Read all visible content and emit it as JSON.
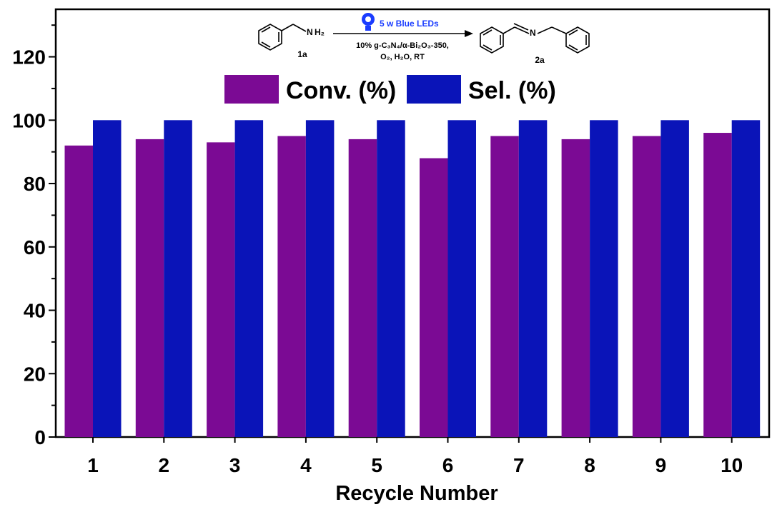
{
  "chart_data": {
    "type": "bar",
    "categories": [
      "1",
      "2",
      "3",
      "4",
      "5",
      "6",
      "7",
      "8",
      "9",
      "10"
    ],
    "series": [
      {
        "name": "Conv. (%)",
        "color": "#7b0a94",
        "values": [
          92,
          94,
          93,
          95,
          94,
          88,
          95,
          94,
          95,
          96
        ]
      },
      {
        "name": "Sel. (%)",
        "color": "#0a14b8",
        "values": [
          100,
          100,
          100,
          100,
          100,
          100,
          100,
          100,
          100,
          100
        ]
      }
    ],
    "xlabel": "Recycle Number",
    "ylabel": "",
    "ylim": [
      0,
      135
    ],
    "yticks": [
      0,
      20,
      40,
      60,
      80,
      100,
      120
    ],
    "legend_position": "top-center",
    "grid": false
  },
  "reaction": {
    "light": "5 w Blue LEDs",
    "reagent_line1": "10% g-C₃N₄/α-Bi₂O₃-350,",
    "reagent_line2": "O₂, H₂O, RT",
    "reactant_label": "1a",
    "product_label": "2a",
    "amine_n": "N",
    "amine_h": "H₂",
    "imine_n": "N",
    "led_color": "#1a3cff",
    "n_color": "#e0141e"
  }
}
